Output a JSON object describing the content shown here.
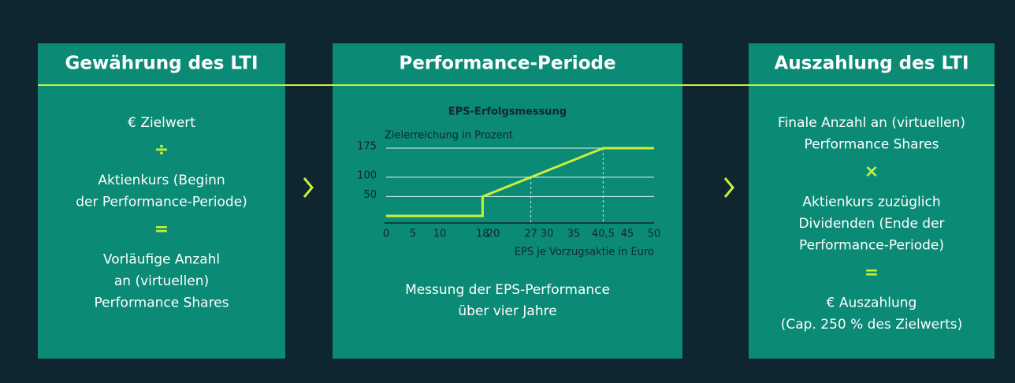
{
  "panels": [
    {
      "title": "Gewährung des LTI",
      "steps": [
        [
          "€ Zielwert"
        ],
        [
          "Aktienkurs (Beginn",
          "der Performance-Periode)"
        ],
        [
          "Vorläufige Anzahl",
          "an (virtuellen)",
          "Performance Shares"
        ]
      ],
      "operators": [
        "÷",
        "="
      ]
    },
    {
      "title": "Performance-Periode",
      "caption": [
        "Messung der EPS-Performance",
        "über vier Jahre"
      ]
    },
    {
      "title": "Auszahlung des LTI",
      "steps": [
        [
          "Finale Anzahl an (virtuellen)",
          "Performance Shares"
        ],
        [
          "Aktienkurs zuzüglich",
          "Dividenden (Ende der",
          "Performance-Periode)"
        ],
        [
          "€ Auszahlung",
          "(Cap. 250 % des Zielwerts)"
        ]
      ],
      "operators": [
        "×",
        "="
      ]
    }
  ],
  "chart_data": {
    "type": "line",
    "title": "EPS-Erfolgsmessung",
    "y_label": "Zielerreichung in Prozent",
    "x_label": "EPS je Vorzugsaktie in Euro",
    "x": [
      0,
      18,
      18,
      27,
      40.5,
      50
    ],
    "values": [
      0,
      0,
      50,
      100,
      175,
      175
    ],
    "color": "#c8f03c",
    "xlim": [
      0,
      50
    ],
    "xticks": [
      0,
      5,
      10,
      18,
      20,
      27,
      30,
      35,
      {
        "value": 40.5,
        "label": "40,5"
      },
      45,
      50
    ],
    "ylim": [
      0,
      175
    ],
    "yticks": [
      50,
      100,
      175
    ],
    "grid": true
  }
}
